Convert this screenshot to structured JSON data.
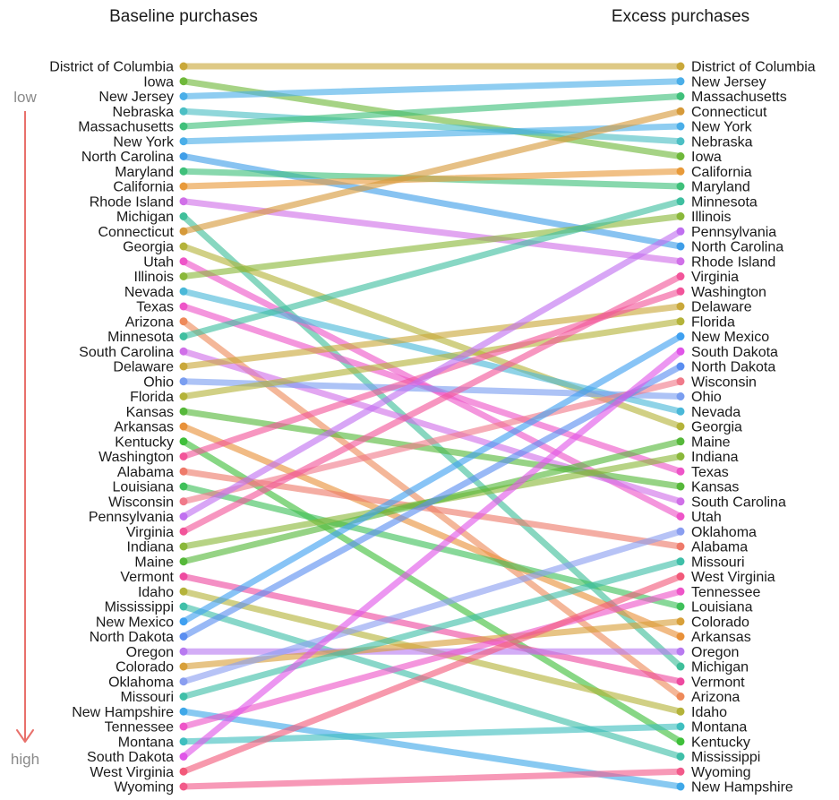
{
  "chart_data": {
    "type": "slope",
    "title_left": "Baseline purchases",
    "title_right": "Excess purchases",
    "axis": {
      "low_label": "low",
      "high_label": "high",
      "arrow_color": "#e8706b"
    },
    "left_order": [
      "District of Columbia",
      "Iowa",
      "New Jersey",
      "Nebraska",
      "Massachusetts",
      "New York",
      "North Carolina",
      "Maryland",
      "California",
      "Rhode Island",
      "Michigan",
      "Connecticut",
      "Georgia",
      "Utah",
      "Illinois",
      "Nevada",
      "Texas",
      "Arizona",
      "Minnesota",
      "South Carolina",
      "Delaware",
      "Ohio",
      "Florida",
      "Kansas",
      "Arkansas",
      "Kentucky",
      "Washington",
      "Alabama",
      "Louisiana",
      "Wisconsin",
      "Pennsylvania",
      "Virginia",
      "Indiana",
      "Maine",
      "Vermont",
      "Idaho",
      "Mississippi",
      "New Mexico",
      "North Dakota",
      "Oregon",
      "Colorado",
      "Oklahoma",
      "Missouri",
      "New Hampshire",
      "Tennessee",
      "Montana",
      "South Dakota",
      "West Virginia",
      "Wyoming"
    ],
    "right_order": [
      "District of Columbia",
      "New Jersey",
      "Massachusetts",
      "Connecticut",
      "New York",
      "Nebraska",
      "Iowa",
      "California",
      "Maryland",
      "Minnesota",
      "Illinois",
      "Pennsylvania",
      "North Carolina",
      "Rhode Island",
      "Virginia",
      "Washington",
      "Delaware",
      "Florida",
      "New Mexico",
      "South Dakota",
      "North Dakota",
      "Wisconsin",
      "Ohio",
      "Nevada",
      "Georgia",
      "Maine",
      "Indiana",
      "Texas",
      "Kansas",
      "South Carolina",
      "Utah",
      "Oklahoma",
      "Alabama",
      "Missouri",
      "West Virginia",
      "Tennessee",
      "Louisiana",
      "Colorado",
      "Arkansas",
      "Oregon",
      "Michigan",
      "Vermont",
      "Arizona",
      "Idaho",
      "Montana",
      "Kentucky",
      "Mississippi",
      "Wyoming",
      "New Hampshire"
    ],
    "colors": {
      "District of Columbia": "#c9a83a",
      "Iowa": "#6fb83a",
      "New Jersey": "#4aaee8",
      "Nebraska": "#4cbfc4",
      "Massachusetts": "#3fc07a",
      "New York": "#4aaee8",
      "North Carolina": "#3f9ee8",
      "Maryland": "#3fc07a",
      "California": "#e89a3a",
      "Rhode Island": "#d070e8",
      "Michigan": "#3fbf9a",
      "Connecticut": "#d69a3a",
      "Georgia": "#b4b33a",
      "Utah": "#ee55c8",
      "Illinois": "#8ab83a",
      "Nevada": "#4ab8d8",
      "Texas": "#ee55c8",
      "Arizona": "#ee8a5a",
      "Minnesota": "#3fbfa0",
      "South Carolina": "#d070e8",
      "Delaware": "#c9a83a",
      "Ohio": "#7a9ef0",
      "Florida": "#b4b33a",
      "Kansas": "#56b83a",
      "Arkansas": "#e8913a",
      "Kentucky": "#3fbf3a",
      "Washington": "#f2559a",
      "Alabama": "#ee7a6a",
      "Louisiana": "#3fc05a",
      "Wisconsin": "#f07a8a",
      "Pennsylvania": "#c070f0",
      "Virginia": "#f2559a",
      "Indiana": "#8ab83a",
      "Maine": "#56b83a",
      "Vermont": "#ee4aa0",
      "Idaho": "#b4b33a",
      "Mississippi": "#3fbfa8",
      "New Mexico": "#3fa0f0",
      "North Dakota": "#5a8ef0",
      "Oregon": "#b87af0",
      "Colorado": "#d8a03a",
      "Oklahoma": "#8a9ef0",
      "Missouri": "#3fbfa8",
      "New Hampshire": "#3fa8e8",
      "Tennessee": "#ee55c8",
      "Montana": "#3fbfbf",
      "South Dakota": "#e055e8",
      "West Virginia": "#f25a7a",
      "Wyoming": "#f25a8a"
    }
  }
}
